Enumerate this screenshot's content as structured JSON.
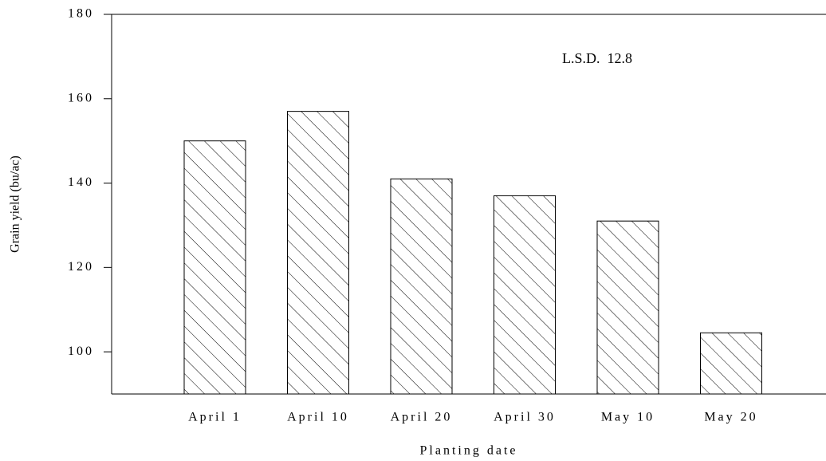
{
  "chart_data": {
    "type": "bar",
    "categories": [
      "April 1",
      "April 10",
      "April 20",
      "April 30",
      "May 10",
      "May 20"
    ],
    "values": [
      150,
      157,
      141,
      137,
      131,
      104.5
    ],
    "ylabel": "Grain yield (bu/ac)",
    "xlabel": "Planting date",
    "annotation": "L.S.D.  12.8",
    "ylim": [
      90,
      180
    ],
    "yticks": [
      100,
      120,
      140,
      160,
      180
    ],
    "pattern": "hatch",
    "color": "#000000"
  }
}
